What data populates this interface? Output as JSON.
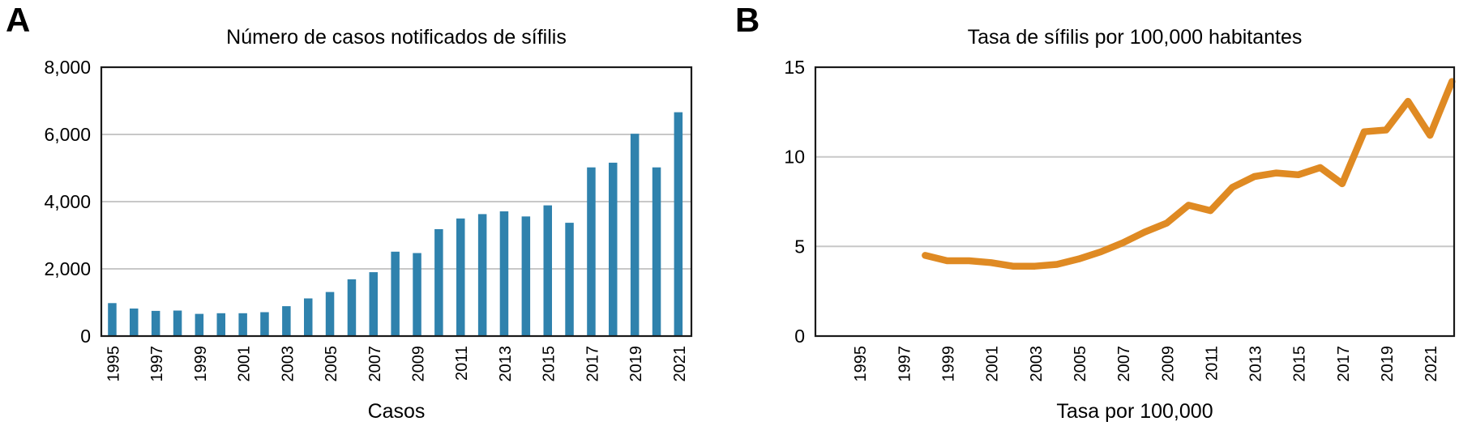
{
  "chart_data": [
    {
      "type": "bar",
      "panel_label": "A",
      "title": "Número de casos notificados de sífilis",
      "xlabel": "Casos",
      "ylabel": "",
      "years": [
        1995,
        1996,
        1997,
        1998,
        1999,
        2000,
        2001,
        2002,
        2003,
        2004,
        2005,
        2006,
        2007,
        2008,
        2009,
        2010,
        2011,
        2012,
        2013,
        2014,
        2015,
        2016,
        2017,
        2018,
        2019,
        2020,
        2021
      ],
      "values": [
        980,
        820,
        750,
        760,
        660,
        680,
        680,
        710,
        890,
        1120,
        1310,
        1690,
        1900,
        2510,
        2470,
        3180,
        3500,
        3630,
        3710,
        3560,
        3890,
        3370,
        5020,
        5160,
        6020,
        5020,
        6660
      ],
      "ylim": [
        0,
        8000
      ],
      "yticks": [
        0,
        2000,
        4000,
        6000,
        8000
      ],
      "ytick_labels": [
        "0",
        "2,000",
        "4,000",
        "6,000",
        "8,000"
      ],
      "xticks": [
        1995,
        1997,
        1999,
        2001,
        2003,
        2005,
        2007,
        2009,
        2011,
        2013,
        2015,
        2017,
        2019,
        2021
      ],
      "xlim": [
        1994.5,
        2021.6
      ],
      "grid": "horizontal-light-gray",
      "legend": "none",
      "bar_color": "#2F82AD"
    },
    {
      "type": "line",
      "panel_label": "B",
      "title": "Tasa de sífilis por 100,000 habitantes",
      "xlabel": "Tasa por 100,000",
      "ylabel": "",
      "years": [
        1998,
        1999,
        2000,
        2001,
        2002,
        2003,
        2004,
        2005,
        2006,
        2007,
        2008,
        2009,
        2010,
        2011,
        2012,
        2013,
        2014,
        2015,
        2016,
        2017,
        2018,
        2019,
        2020,
        2021,
        2022
      ],
      "values": [
        4.5,
        4.2,
        4.2,
        4.1,
        3.9,
        3.9,
        4.0,
        4.3,
        4.7,
        5.2,
        5.8,
        6.3,
        7.3,
        7.0,
        8.3,
        8.9,
        9.1,
        9.0,
        9.4,
        8.5,
        11.4,
        11.5,
        13.1,
        11.2,
        14.2
      ],
      "ylim": [
        0,
        15
      ],
      "yticks": [
        0,
        5,
        10,
        15
      ],
      "ytick_labels": [
        "0",
        "5",
        "10",
        "15"
      ],
      "xticks": [
        1995,
        1997,
        1999,
        2001,
        2003,
        2005,
        2007,
        2009,
        2011,
        2013,
        2015,
        2017,
        2019,
        2021
      ],
      "xlim": [
        1993.0,
        2022.1
      ],
      "grid": "horizontal-light-gray",
      "legend": "none",
      "line_color": "#DF8A23"
    }
  ],
  "style": {
    "grid_color": "#C8C8C8",
    "border_color": "#1A1A1A",
    "background": "#FFFFFF"
  }
}
